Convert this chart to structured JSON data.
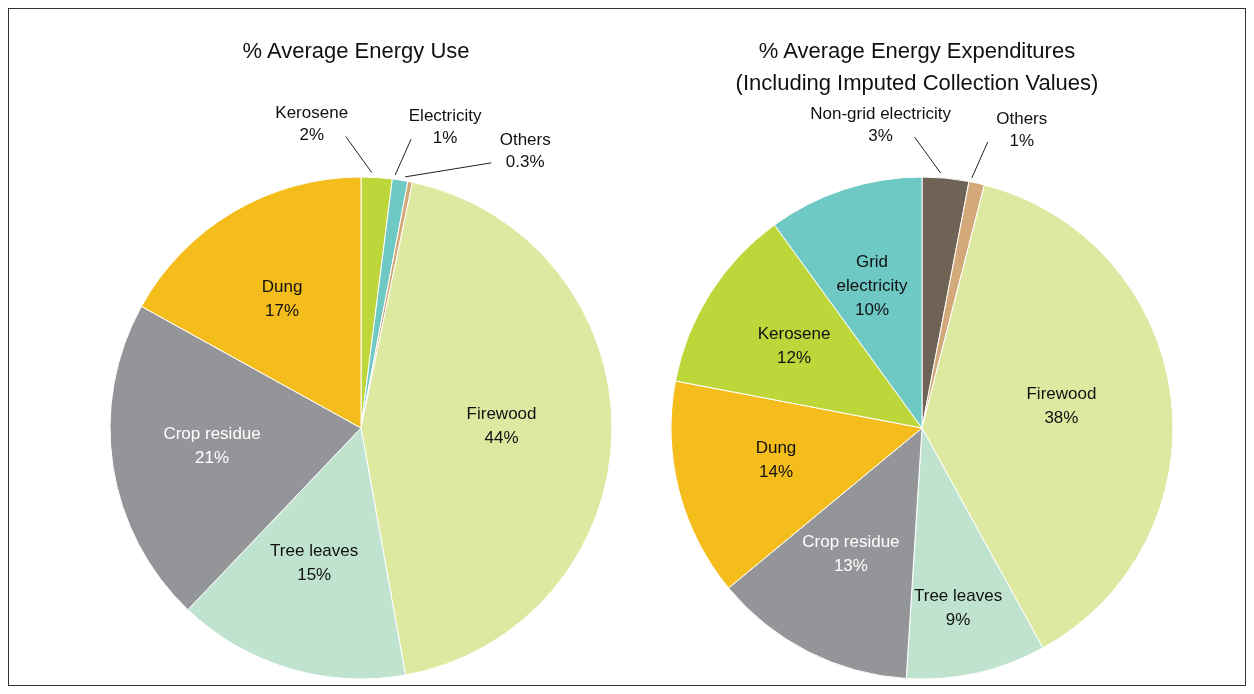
{
  "chart_data": [
    {
      "type": "pie",
      "title": "% Average Energy Use",
      "categories": [
        "Kerosene",
        "Electricity",
        "Others",
        "Firewood",
        "Tree leaves",
        "Crop residue",
        "Dung"
      ],
      "values": [
        2,
        1,
        0.3,
        44,
        15,
        21,
        17
      ],
      "value_labels": [
        "2%",
        "1%",
        "0.3%",
        "44%",
        "15%",
        "21%",
        "17%"
      ],
      "colors": [
        "#bdd63a",
        "#6ec8c4",
        "#d4a97a",
        "#dde8a0",
        "#c0e3d0",
        "#939598",
        "#f4bd1b"
      ]
    },
    {
      "type": "pie",
      "title": "% Average Energy Expenditures",
      "subtitle": "(Including Imputed Collection Values)",
      "categories": [
        "Non-grid electricity",
        "Others",
        "Firewood",
        "Tree leaves",
        "Crop residue",
        "Dung",
        "Kerosene",
        "Grid electricity"
      ],
      "values": [
        3,
        1,
        38,
        9,
        13,
        14,
        12,
        10
      ],
      "value_labels": [
        "3%",
        "1%",
        "38%",
        "9%",
        "13%",
        "14%",
        "12%",
        "10%"
      ],
      "colors": [
        "#6f6356",
        "#d4a97a",
        "#dde8a0",
        "#c0e3d0",
        "#939598",
        "#f4bd1b",
        "#bdd63a",
        "#6ec8c4"
      ]
    }
  ]
}
